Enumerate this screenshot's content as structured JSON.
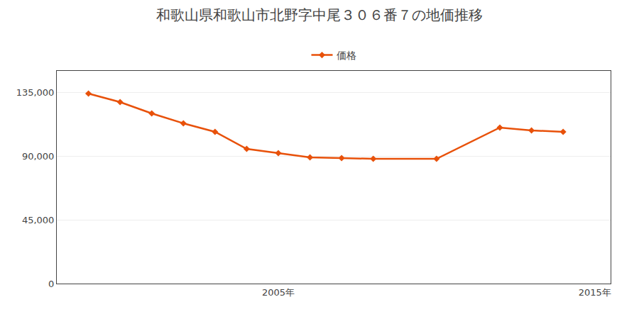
{
  "chart_data": {
    "type": "line",
    "title": "和歌山県和歌山市北野字中尾３０６番７の地価推移",
    "x": [
      1999,
      2000,
      2001,
      2002,
      2003,
      2004,
      2005,
      2006,
      2007,
      2008,
      2010,
      2012,
      2013,
      2014
    ],
    "series": [
      {
        "name": "価格",
        "color": "#e8510a",
        "marker": "diamond",
        "values": [
          134000,
          128000,
          120000,
          113000,
          107000,
          95000,
          92000,
          89000,
          88500,
          88000,
          88000,
          110000,
          108000,
          107000
        ]
      }
    ],
    "xlim": [
      1998.0,
      2015.5
    ],
    "xticks": [
      {
        "value": 2005,
        "label": "2005年"
      },
      {
        "value": 2015,
        "label": "2015年"
      }
    ],
    "ylim": [
      0,
      150000
    ],
    "yticks": [
      0,
      {
        "value": 45000,
        "label": "45,000"
      },
      {
        "value": 90000,
        "label": "90,000"
      },
      {
        "value": 135000,
        "label": "135,000"
      }
    ],
    "grid": true,
    "legend": "top"
  }
}
